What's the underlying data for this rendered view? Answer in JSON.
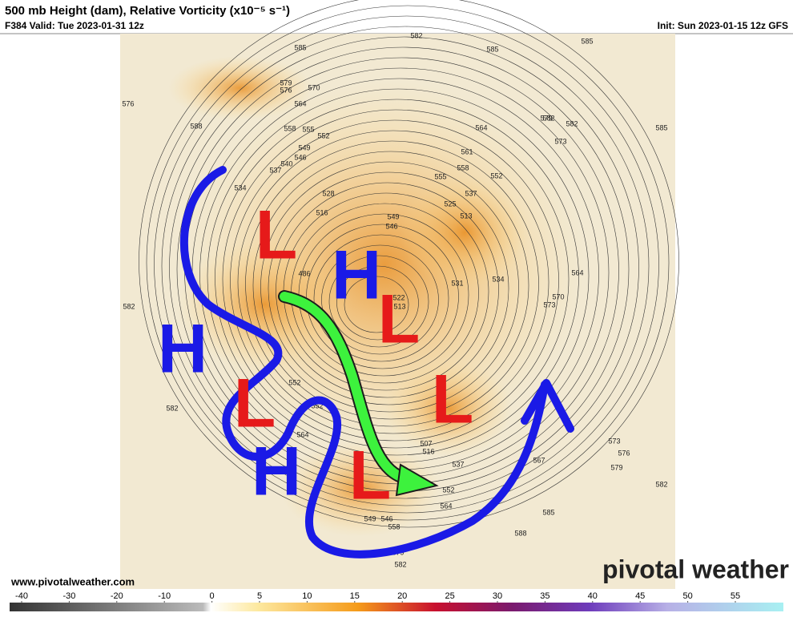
{
  "header": {
    "title": "500 mb Height (dam), Relative Vorticity (x10⁻⁵ s⁻¹)",
    "valid": "F384 Valid: Tue 2023-01-31 12z",
    "init": "Init: Sun 2023-01-15 12z GFS"
  },
  "footer": {
    "url": "www.pivotalweather.com",
    "brand": "pivotal weather"
  },
  "colorbar": {
    "ticks": [
      -40,
      -30,
      -20,
      -10,
      0,
      5,
      10,
      15,
      20,
      25,
      30,
      35,
      40,
      45,
      50,
      55
    ]
  },
  "annotations": [
    "L",
    "H",
    "L",
    "H",
    "L",
    "L",
    "H",
    "L"
  ],
  "contour_labels": [
    582,
    585,
    585,
    585,
    588,
    579,
    576,
    570,
    564,
    558,
    555,
    552,
    549,
    546,
    540,
    537,
    534,
    528,
    516,
    486,
    564,
    561,
    558,
    552,
    555,
    549,
    546,
    537,
    525,
    513,
    531,
    534,
    522,
    513,
    564,
    570,
    573,
    582,
    582,
    582,
    573,
    576,
    579,
    582,
    567,
    585,
    588,
    585,
    582,
    579,
    573,
    576,
    552,
    564,
    552,
    507,
    516,
    537,
    552,
    564,
    549,
    546,
    558,
    579,
    582
  ]
}
